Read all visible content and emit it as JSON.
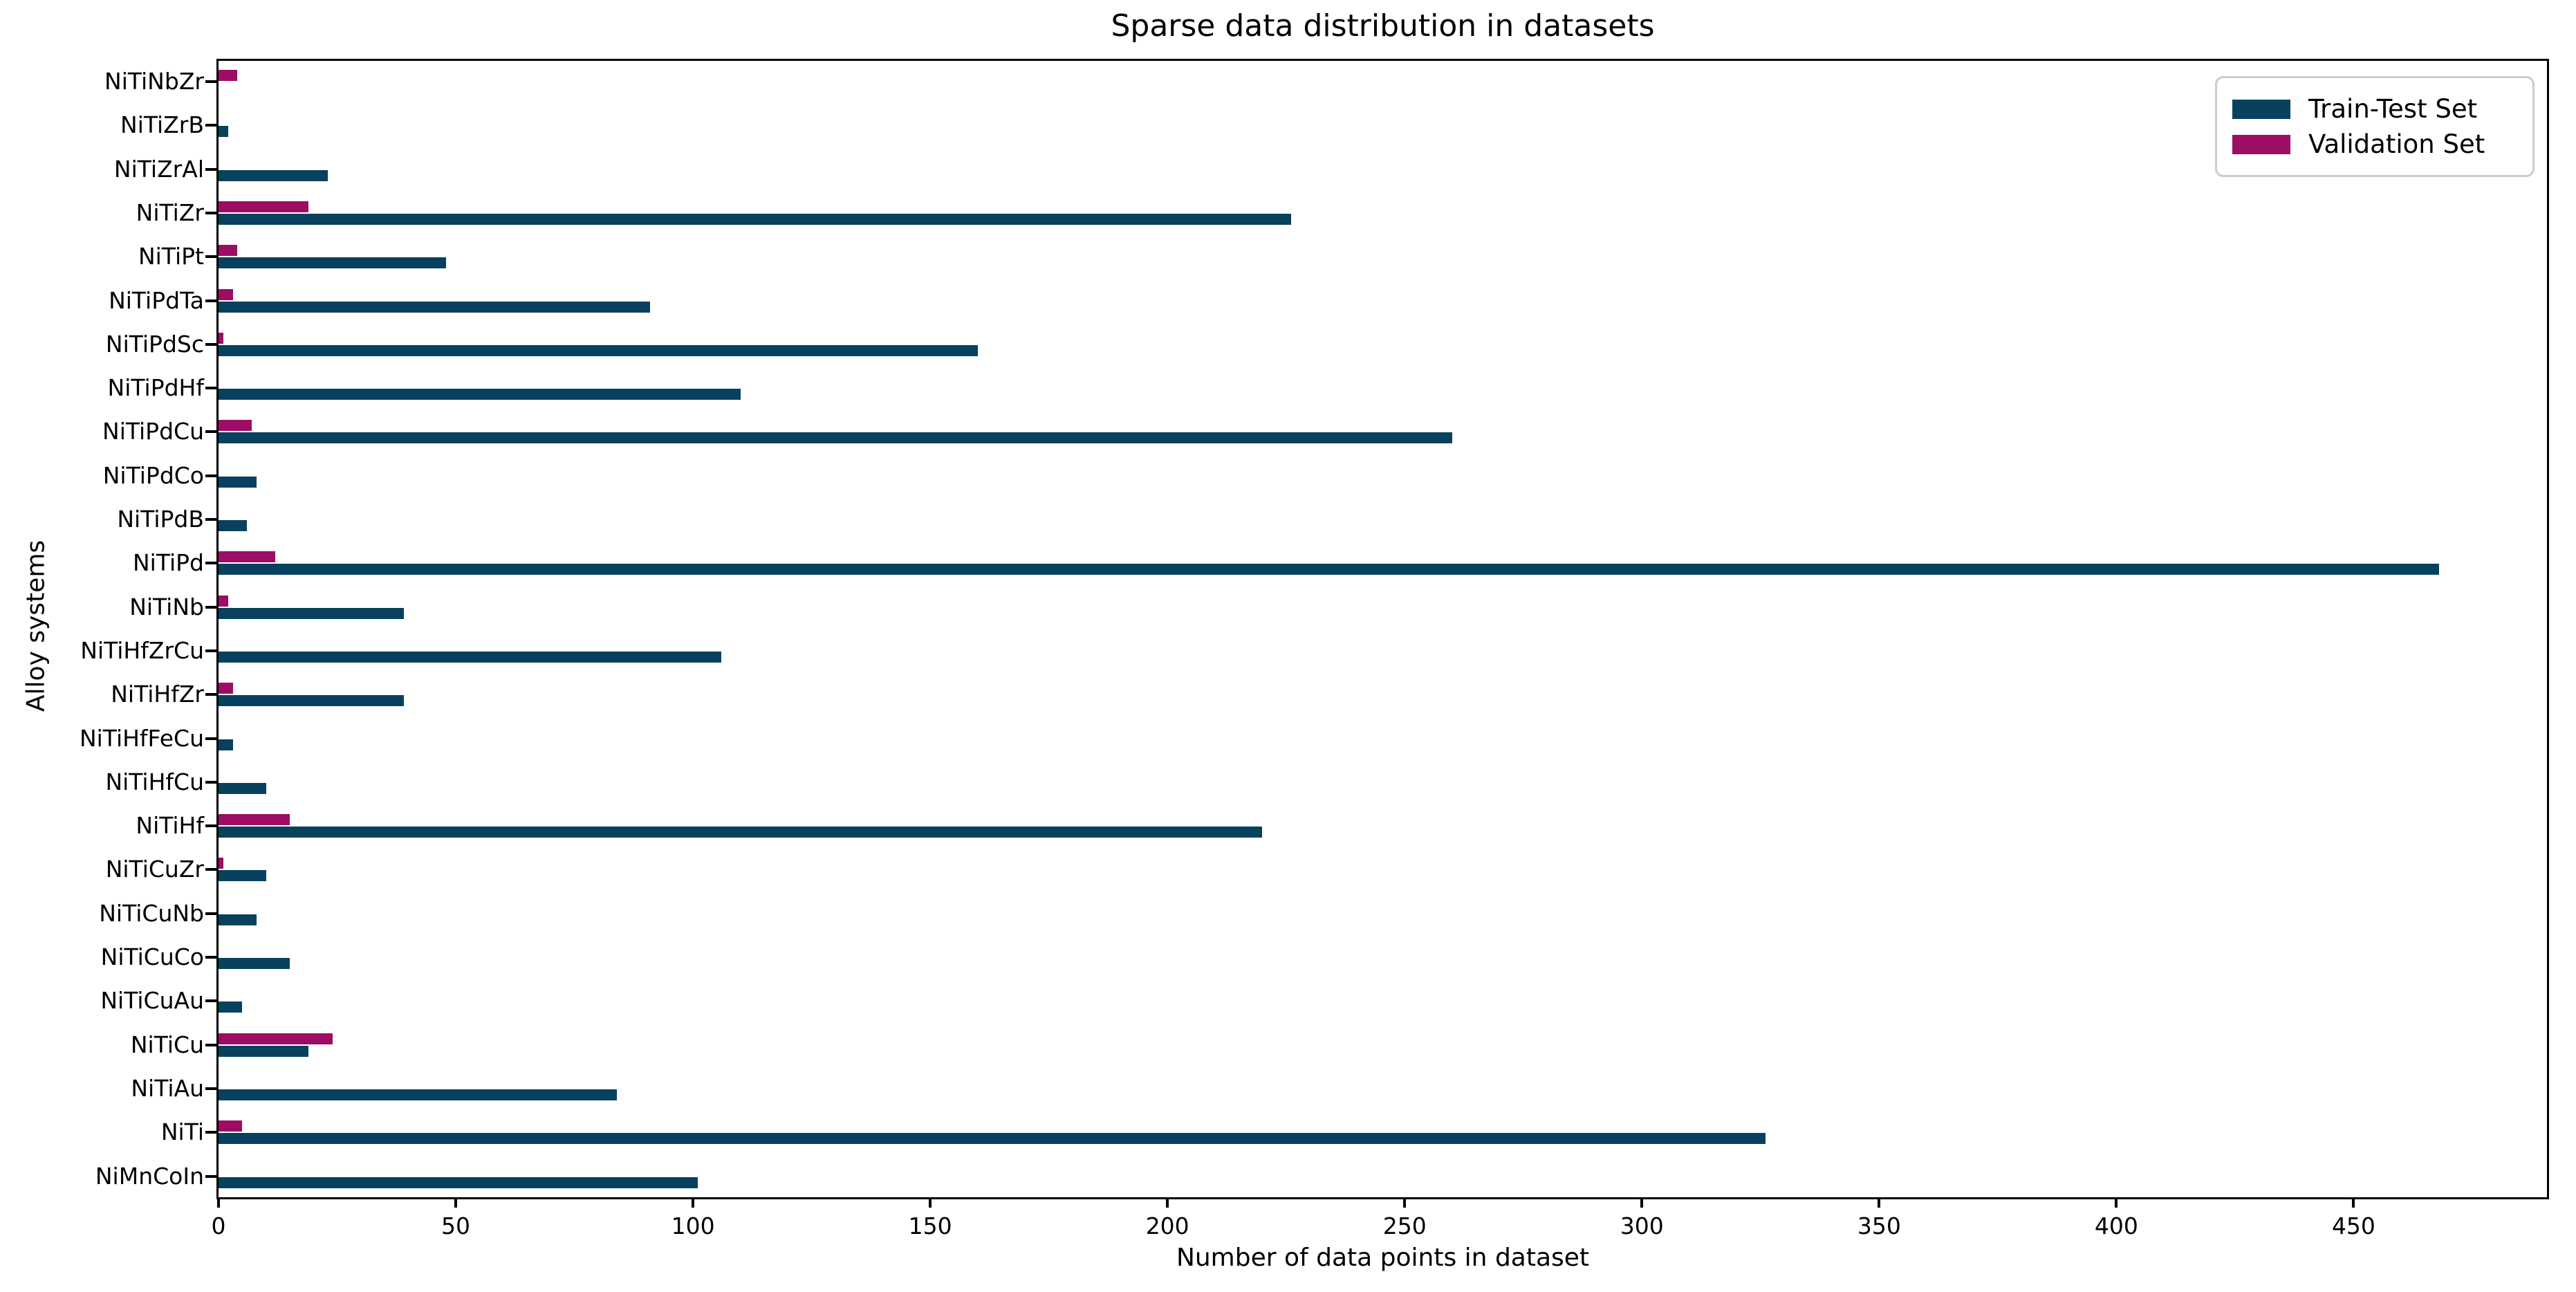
{
  "title": "Sparse data distribution in datasets",
  "chart_data": {
    "type": "bar",
    "orientation": "horizontal",
    "title": "Sparse data distribution in datasets",
    "xlabel": "Number of data points in dataset",
    "ylabel": "Alloy systems",
    "grid": false,
    "legend_position": "upper right",
    "xlim": [
      0,
      491
    ],
    "x_ticks": [
      0,
      50,
      100,
      150,
      200,
      250,
      300,
      350,
      400,
      450
    ],
    "categories_top_to_bottom": [
      "NiTiNbZr",
      "NiTiZrB",
      "NiTiZrAl",
      "NiTiZr",
      "NiTiPt",
      "NiTiPdTa",
      "NiTiPdSc",
      "NiTiPdHf",
      "NiTiPdCu",
      "NiTiPdCo",
      "NiTiPdB",
      "NiTiPd",
      "NiTiNb",
      "NiTiHfZrCu",
      "NiTiHfZr",
      "NiTiHfFeCu",
      "NiTiHfCu",
      "NiTiHf",
      "NiTiCuZr",
      "NiTiCuNb",
      "NiTiCuCo",
      "NiTiCuAu",
      "NiTiCu",
      "NiTiAu",
      "NiTi",
      "NiMnCoIn"
    ],
    "series": [
      {
        "name": "Train-Test Set",
        "color": "#07415e",
        "values": [
          0,
          2,
          23,
          226,
          48,
          91,
          160,
          110,
          260,
          8,
          6,
          468,
          39,
          106,
          39,
          3,
          10,
          220,
          10,
          8,
          15,
          5,
          19,
          84,
          326,
          101
        ]
      },
      {
        "name": "Validation Set",
        "color": "#9c0d63",
        "values": [
          4,
          0,
          0,
          19,
          4,
          3,
          1,
          0,
          7,
          0,
          0,
          12,
          2,
          0,
          3,
          0,
          0,
          15,
          1,
          0,
          0,
          0,
          24,
          0,
          5,
          0
        ]
      }
    ],
    "axis_color": "#000000",
    "background_color": "#ffffff"
  },
  "legend": {
    "items": [
      {
        "label": "Train-Test Set"
      },
      {
        "label": "Validation Set"
      }
    ]
  }
}
